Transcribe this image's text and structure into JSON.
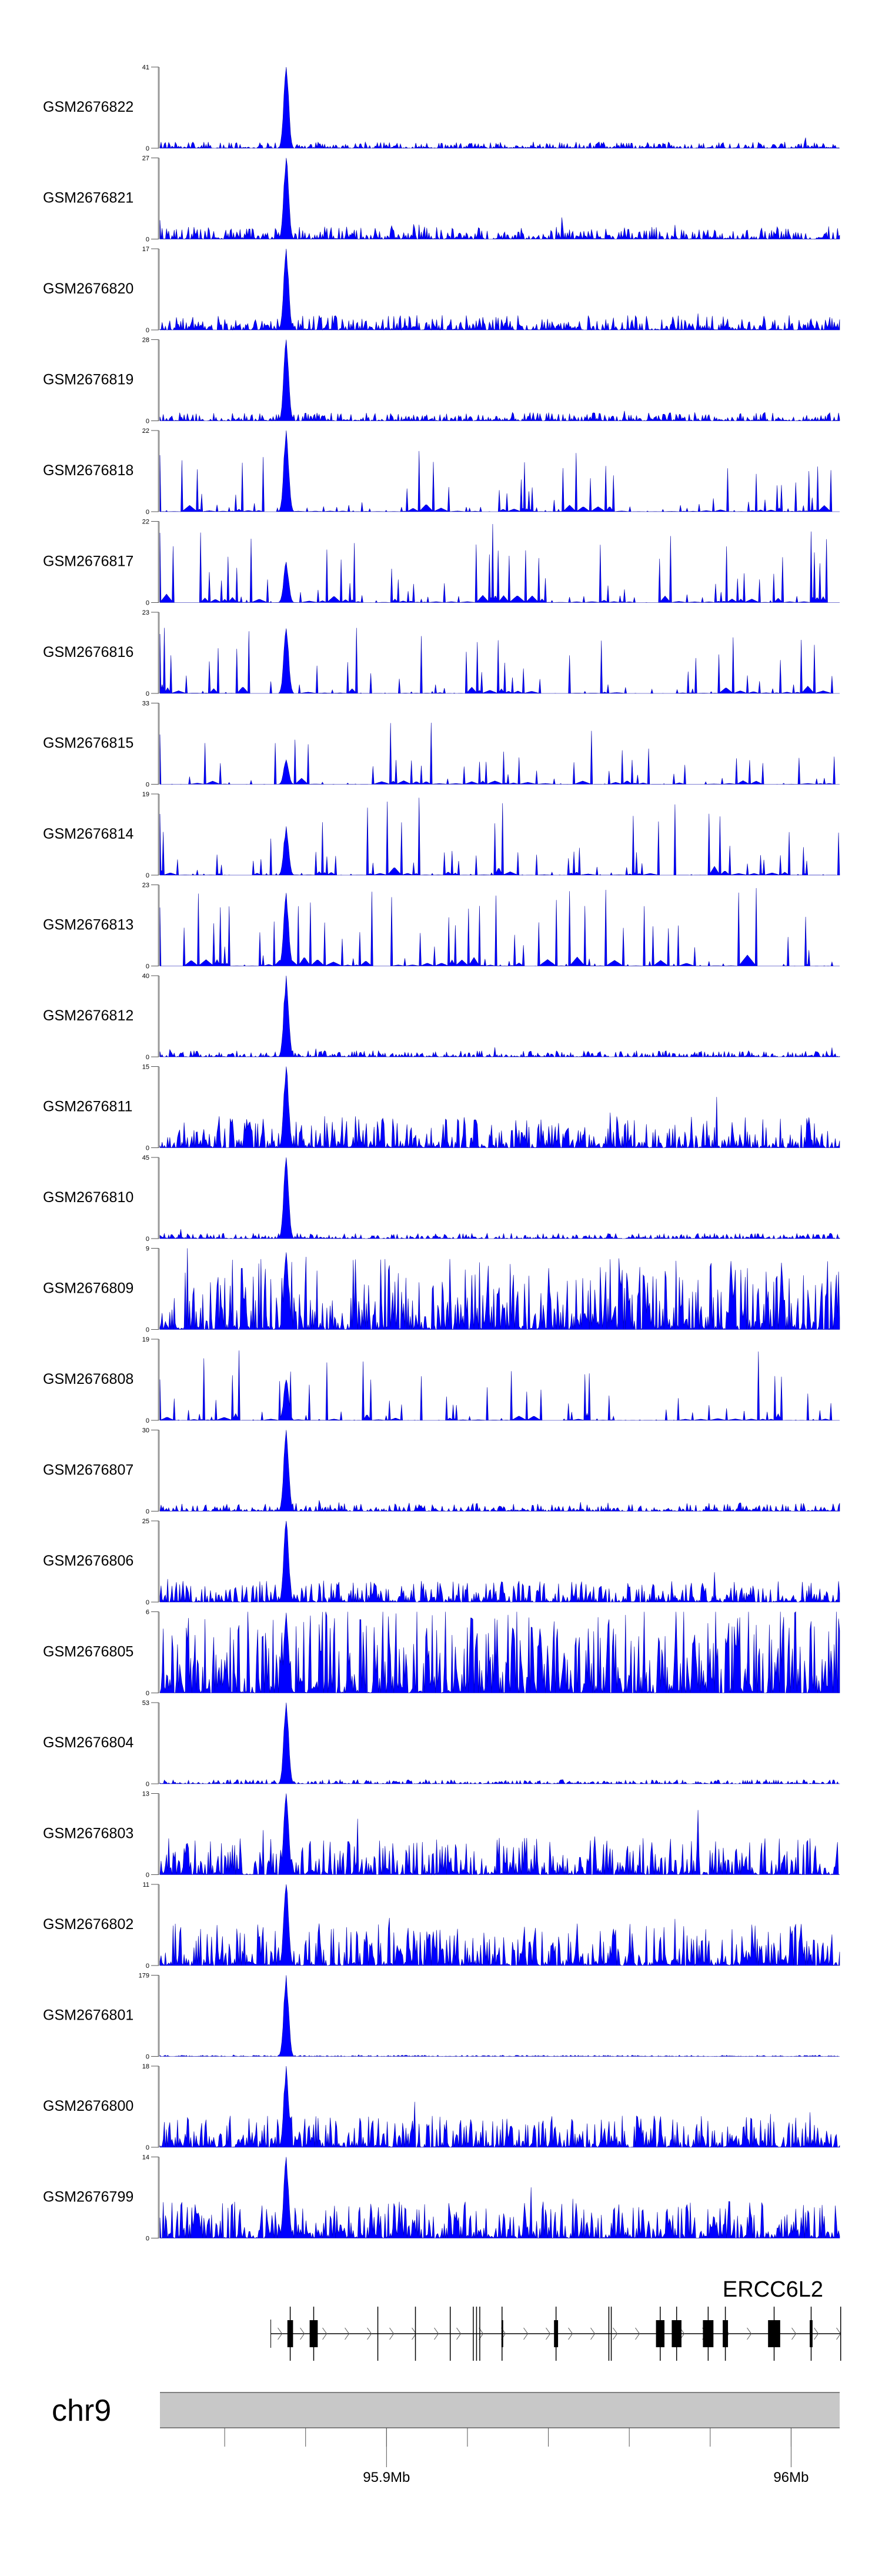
{
  "chart_data": {
    "type": "area",
    "title": "",
    "signal_color": "#0000ff",
    "xlim_mb": [
      95.844,
      96.012
    ],
    "tracks": [
      {
        "name": "GSM2676822",
        "ymin": "0",
        "ymax": 41,
        "style": "peak",
        "bg": 0.06,
        "peak": 1.0,
        "seed": 1
      },
      {
        "name": "GSM2676821",
        "ymin": "0",
        "ymax": 27,
        "style": "peak",
        "bg": 0.12,
        "peak": 1.0,
        "seed": 2
      },
      {
        "name": "GSM2676820",
        "ymin": "0",
        "ymax": 17,
        "style": "peak",
        "bg": 0.14,
        "peak": 1.0,
        "seed": 3
      },
      {
        "name": "GSM2676819",
        "ymin": "0",
        "ymax": 28,
        "style": "peak",
        "bg": 0.08,
        "peak": 1.0,
        "seed": 4
      },
      {
        "name": "GSM2676818",
        "ymin": "0",
        "ymax": 22,
        "style": "sparse",
        "bg": 0.35,
        "peak": 1.0,
        "seed": 5
      },
      {
        "name": "GSM2676817",
        "ymin": "0",
        "ymax": 22,
        "style": "sparse",
        "bg": 0.45,
        "peak": 0.5,
        "seed": 6
      },
      {
        "name": "GSM2676816",
        "ymin": "0",
        "ymax": 23,
        "style": "sparse",
        "bg": 0.4,
        "peak": 0.8,
        "seed": 7
      },
      {
        "name": "GSM2676815",
        "ymin": "0",
        "ymax": 33,
        "style": "sparse",
        "bg": 0.35,
        "peak": 0.3,
        "seed": 8
      },
      {
        "name": "GSM2676814",
        "ymin": "0",
        "ymax": 19,
        "style": "sparse",
        "bg": 0.45,
        "peak": 0.6,
        "seed": 9
      },
      {
        "name": "GSM2676813",
        "ymin": "0",
        "ymax": 23,
        "style": "sparse",
        "bg": 0.45,
        "peak": 0.9,
        "seed": 10
      },
      {
        "name": "GSM2676812",
        "ymin": "0",
        "ymax": 40,
        "style": "peak",
        "bg": 0.06,
        "peak": 1.0,
        "seed": 11
      },
      {
        "name": "GSM2676811",
        "ymin": "0",
        "ymax": 15,
        "style": "peak",
        "bg": 0.3,
        "peak": 1.0,
        "seed": 12
      },
      {
        "name": "GSM2676810",
        "ymin": "0",
        "ymax": 45,
        "style": "peak",
        "bg": 0.05,
        "peak": 1.0,
        "seed": 13
      },
      {
        "name": "GSM2676809",
        "ymin": "0",
        "ymax": 9,
        "style": "dense",
        "bg": 0.55,
        "peak": 0.95,
        "seed": 14
      },
      {
        "name": "GSM2676808",
        "ymin": "0",
        "ymax": 19,
        "style": "sparse",
        "bg": 0.4,
        "peak": 0.5,
        "seed": 15
      },
      {
        "name": "GSM2676807",
        "ymin": "0",
        "ymax": 30,
        "style": "peak",
        "bg": 0.08,
        "peak": 1.0,
        "seed": 16
      },
      {
        "name": "GSM2676806",
        "ymin": "0",
        "ymax": 25,
        "style": "peak",
        "bg": 0.2,
        "peak": 1.0,
        "seed": 17
      },
      {
        "name": "GSM2676805",
        "ymin": "0",
        "ymax": 6,
        "style": "dense",
        "bg": 0.65,
        "peak": 0.95,
        "seed": 18
      },
      {
        "name": "GSM2676804",
        "ymin": "0",
        "ymax": 53,
        "style": "peak",
        "bg": 0.04,
        "peak": 1.0,
        "seed": 19
      },
      {
        "name": "GSM2676803",
        "ymin": "0",
        "ymax": 13,
        "style": "peak",
        "bg": 0.35,
        "peak": 1.0,
        "seed": 20
      },
      {
        "name": "GSM2676802",
        "ymin": "0",
        "ymax": 11,
        "style": "peak",
        "bg": 0.4,
        "peak": 1.0,
        "seed": 21
      },
      {
        "name": "GSM2676801",
        "ymin": "0",
        "ymax": 179,
        "style": "peak",
        "bg": 0.012,
        "peak": 1.0,
        "seed": 22
      },
      {
        "name": "GSM2676800",
        "ymin": "0",
        "ymax": 18,
        "style": "peak",
        "bg": 0.3,
        "peak": 1.0,
        "seed": 23
      },
      {
        "name": "GSM2676799",
        "ymin": "0",
        "ymax": 14,
        "style": "peak",
        "bg": 0.35,
        "peak": 1.0,
        "seed": 24
      }
    ],
    "peak_position_mb": 95.8753,
    "gene": {
      "name": "ERCC6L2",
      "strand": "+",
      "start_mb": 95.8714,
      "end_mb": 96.0123,
      "exons_mb": [
        [
          95.8755,
          95.8769,
          true
        ],
        [
          95.881,
          95.883,
          true
        ],
        [
          95.8978,
          95.8979,
          false
        ],
        [
          95.9071,
          95.9072,
          false
        ],
        [
          95.9156,
          95.9159,
          false
        ],
        [
          95.9214,
          95.9215,
          false
        ],
        [
          95.9222,
          95.9223,
          false
        ],
        [
          95.923,
          95.9231,
          false
        ],
        [
          95.9284,
          95.9287,
          true
        ],
        [
          95.9414,
          95.9424,
          true
        ],
        [
          95.9549,
          95.955,
          false
        ],
        [
          95.9555,
          95.9556,
          false
        ],
        [
          95.9666,
          95.9687,
          true
        ],
        [
          95.9705,
          95.9729,
          true
        ],
        [
          95.9782,
          95.9808,
          true
        ],
        [
          95.9831,
          95.9844,
          true
        ],
        [
          95.9943,
          95.9973,
          true
        ],
        [
          96.0046,
          96.0053,
          true
        ],
        [
          96.0122,
          96.0123,
          false
        ]
      ]
    },
    "chromosome": "chr9",
    "axis_ticks_mb": [
      95.86,
      95.88,
      95.9,
      95.92,
      95.94,
      95.96,
      95.98,
      96.0
    ],
    "axis_tick_labels": [
      {
        "mb": 95.9,
        "label": "95.9Mb"
      },
      {
        "mb": 96.0,
        "label": "96Mb"
      }
    ]
  }
}
